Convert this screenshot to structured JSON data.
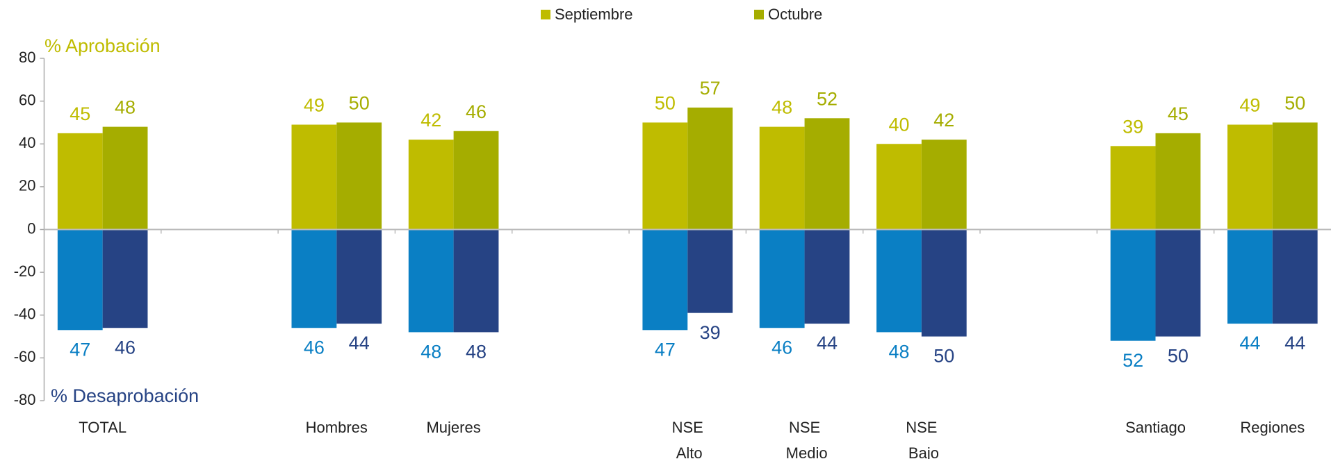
{
  "chart_data": {
    "type": "bar",
    "categories": [
      "TOTAL",
      null,
      "Hombres",
      "Mujeres",
      null,
      "NSE Alto",
      "NSE Medio",
      "NSE Bajo",
      null,
      "Santiago",
      "Regiones"
    ],
    "series": [
      {
        "name": "Septiembre",
        "color": "#bfbc00",
        "values": [
          45,
          null,
          49,
          42,
          null,
          50,
          48,
          40,
          null,
          39,
          49
        ]
      },
      {
        "name": "Octubre",
        "color": "#a5ad00",
        "values": [
          48,
          null,
          50,
          46,
          null,
          57,
          52,
          42,
          null,
          45,
          50
        ]
      },
      {
        "color": "#0a7fc4",
        "values": [
          -47,
          null,
          -46,
          -48,
          null,
          -47,
          -46,
          -48,
          null,
          -52,
          -44
        ],
        "value_labels": [
          "47",
          null,
          "46",
          "48",
          null,
          "47",
          "46",
          "48",
          null,
          "52",
          "44"
        ]
      },
      {
        "color": "#264384",
        "values": [
          -46,
          null,
          -44,
          -48,
          null,
          -39,
          -44,
          -50,
          null,
          -50,
          -44
        ],
        "value_labels": [
          "46",
          null,
          "44",
          "48",
          null,
          "39",
          "44",
          "50",
          null,
          "50",
          "44"
        ]
      }
    ],
    "annotations": [
      {
        "text": "% Aprobación",
        "color": "#bfbc00"
      },
      {
        "text": "% Desaprobación",
        "color": "#264384"
      }
    ],
    "ylim": [
      -80,
      80
    ],
    "yticks": [
      -80,
      -60,
      -40,
      -20,
      0,
      20,
      40,
      60,
      80
    ],
    "legend": "top",
    "grid": false
  }
}
